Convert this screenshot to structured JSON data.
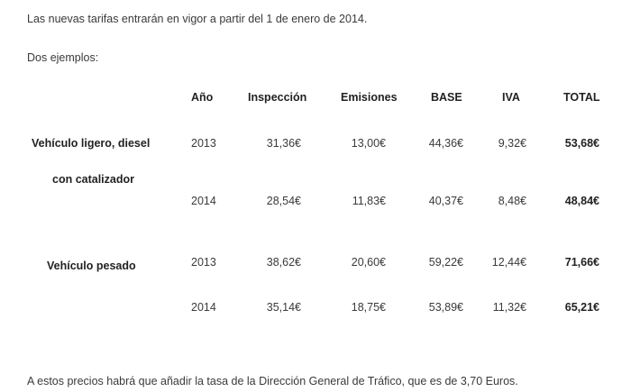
{
  "intro": "Las nuevas tarifas entrarán en vigor a partir del 1 de enero de 2014.",
  "examples_label": "Dos ejemplos:",
  "table": {
    "headers": [
      "Año",
      "Inspección",
      "Emisiones",
      "BASE",
      "IVA",
      "TOTAL"
    ],
    "groups": [
      {
        "label_line1": "Vehículo ligero, diesel",
        "label_line2": "con catalizador",
        "rows": [
          [
            "2013",
            "31,36€",
            "13,00€",
            "44,36€",
            "9,32€",
            "53,68€"
          ],
          [
            "2014",
            "28,54€",
            "11,83€",
            "40,37€",
            "8,48€",
            "48,84€"
          ]
        ]
      },
      {
        "label_line1": "Vehículo pesado",
        "rows": [
          [
            "2013",
            "38,62€",
            "20,60€",
            "59,22€",
            "12,44€",
            "71,66€"
          ],
          [
            "2014",
            "35,14€",
            "18,75€",
            "53,89€",
            "11,32€",
            "65,21€"
          ]
        ]
      }
    ]
  },
  "footer": "A estos precios habrá que añadir la tasa de la Dirección General de Tráfico, que es de 3,70 Euros."
}
